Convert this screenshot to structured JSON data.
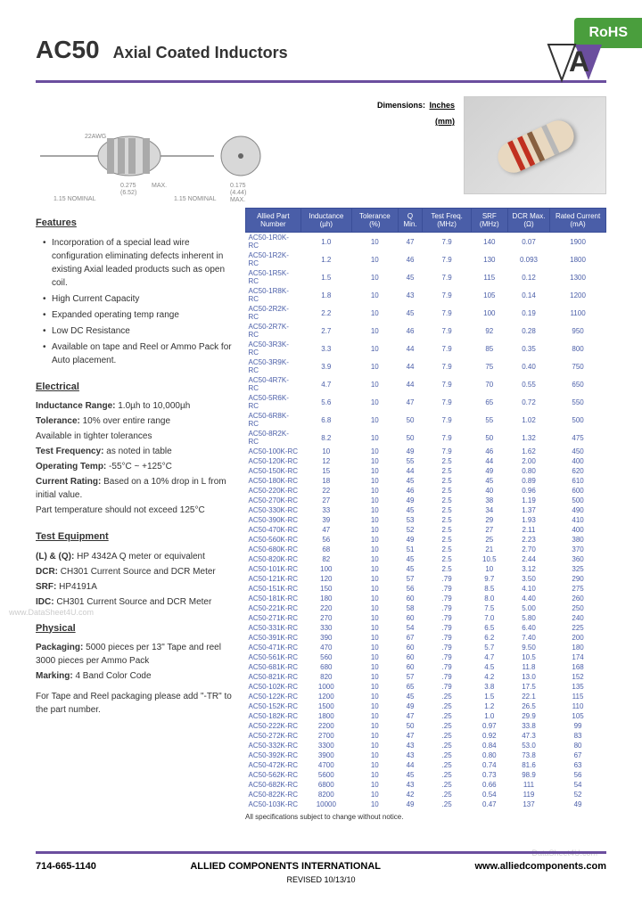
{
  "header": {
    "rohs": "RoHS",
    "part_number": "AC50",
    "description": "Axial Coated Inductors",
    "dimensions_label": "Dimensions:",
    "dimensions_units": "Inches\n(mm)"
  },
  "colors": {
    "purple_rule": "#6b4e9e",
    "table_header_bg": "#4a5ea8",
    "table_text": "#4a5ea8",
    "rohs_bg": "#4a9e3d"
  },
  "features": {
    "title": "Features",
    "items": [
      "Incorporation of a special lead wire configuration eliminating defects inherent in existing Axial leaded products such as open coil.",
      "High Current Capacity",
      "Expanded operating temp range",
      "Low DC Resistance",
      "Available on tape and Reel or Ammo Pack for Auto placement."
    ]
  },
  "electrical": {
    "title": "Electrical",
    "lines": [
      {
        "label": "Inductance Range:",
        "value": "1.0µh to 10,000µh"
      },
      {
        "label": "Tolerance:",
        "value": "10% over entire range"
      },
      {
        "label": "",
        "value": "Available in tighter tolerances"
      },
      {
        "label": "Test Frequency:",
        "value": "as noted in table"
      },
      {
        "label": "Operating Temp:",
        "value": "-55°C ~ +125°C"
      },
      {
        "label": "Current Rating:",
        "value": "Based on a 10% drop in L from initial value."
      },
      {
        "label": "",
        "value": "Part temperature should not exceed 125°C"
      }
    ]
  },
  "test_equipment": {
    "title": "Test Equipment",
    "lines": [
      {
        "label": "(L) & (Q):",
        "value": "HP 4342A Q meter or equivalent"
      },
      {
        "label": "DCR:",
        "value": "CH301 Current Source and DCR Meter"
      },
      {
        "label": "SRF:",
        "value": "HP4191A"
      },
      {
        "label": "IDC:",
        "value": "CH301 Current Source and DCR Meter"
      }
    ]
  },
  "physical": {
    "title": "Physical",
    "lines": [
      {
        "label": "Packaging:",
        "value": "5000 pieces per 13\" Tape and reel 3000 pieces per Ammo Pack"
      },
      {
        "label": "Marking:",
        "value": "4 Band Color Code"
      }
    ],
    "note": "For Tape and Reel packaging please add \"-TR\" to the part number."
  },
  "table": {
    "headers": [
      "Allied Part Number",
      "Inductance (µh)",
      "Tolerance (%)",
      "Q Min.",
      "Test Freq. (MHz)",
      "SRF (MHz)",
      "DCR Max. (Ω)",
      "Rated Current (mA)"
    ],
    "rows": [
      [
        "AC50-1R0K-RC",
        "1.0",
        "10",
        "47",
        "7.9",
        "140",
        "0.07",
        "1900"
      ],
      [
        "AC50-1R2K-RC",
        "1.2",
        "10",
        "46",
        "7.9",
        "130",
        "0.093",
        "1800"
      ],
      [
        "AC50-1R5K-RC",
        "1.5",
        "10",
        "45",
        "7.9",
        "115",
        "0.12",
        "1300"
      ],
      [
        "AC50-1R8K-RC",
        "1.8",
        "10",
        "43",
        "7.9",
        "105",
        "0.14",
        "1200"
      ],
      [
        "AC50-2R2K-RC",
        "2.2",
        "10",
        "45",
        "7.9",
        "100",
        "0.19",
        "1100"
      ],
      [
        "AC50-2R7K-RC",
        "2.7",
        "10",
        "46",
        "7.9",
        "92",
        "0.28",
        "950"
      ],
      [
        "AC50-3R3K-RC",
        "3.3",
        "10",
        "44",
        "7.9",
        "85",
        "0.35",
        "800"
      ],
      [
        "AC50-3R9K-RC",
        "3.9",
        "10",
        "44",
        "7.9",
        "75",
        "0.40",
        "750"
      ],
      [
        "AC50-4R7K-RC",
        "4.7",
        "10",
        "44",
        "7.9",
        "70",
        "0.55",
        "650"
      ],
      [
        "AC50-5R6K-RC",
        "5.6",
        "10",
        "47",
        "7.9",
        "65",
        "0.72",
        "550"
      ],
      [
        "AC50-6R8K-RC",
        "6.8",
        "10",
        "50",
        "7.9",
        "55",
        "1.02",
        "500"
      ],
      [
        "AC50-8R2K-RC",
        "8.2",
        "10",
        "50",
        "7.9",
        "50",
        "1.32",
        "475"
      ],
      [
        "AC50-100K-RC",
        "10",
        "10",
        "49",
        "7.9",
        "46",
        "1.62",
        "450"
      ],
      [
        "AC50-120K-RC",
        "12",
        "10",
        "55",
        "2.5",
        "44",
        "2.00",
        "400"
      ],
      [
        "AC50-150K-RC",
        "15",
        "10",
        "44",
        "2.5",
        "49",
        "0.80",
        "620"
      ],
      [
        "AC50-180K-RC",
        "18",
        "10",
        "45",
        "2.5",
        "45",
        "0.89",
        "610"
      ],
      [
        "AC50-220K-RC",
        "22",
        "10",
        "46",
        "2.5",
        "40",
        "0.96",
        "600"
      ],
      [
        "AC50-270K-RC",
        "27",
        "10",
        "49",
        "2.5",
        "38",
        "1.19",
        "500"
      ],
      [
        "AC50-330K-RC",
        "33",
        "10",
        "45",
        "2.5",
        "34",
        "1.37",
        "490"
      ],
      [
        "AC50-390K-RC",
        "39",
        "10",
        "53",
        "2.5",
        "29",
        "1.93",
        "410"
      ],
      [
        "AC50-470K-RC",
        "47",
        "10",
        "52",
        "2.5",
        "27",
        "2.11",
        "400"
      ],
      [
        "AC50-560K-RC",
        "56",
        "10",
        "49",
        "2.5",
        "25",
        "2.23",
        "380"
      ],
      [
        "AC50-680K-RC",
        "68",
        "10",
        "51",
        "2.5",
        "21",
        "2.70",
        "370"
      ],
      [
        "AC50-820K-RC",
        "82",
        "10",
        "45",
        "2.5",
        "10.5",
        "2.44",
        "360"
      ],
      [
        "AC50-101K-RC",
        "100",
        "10",
        "45",
        "2.5",
        "10",
        "3.12",
        "325"
      ],
      [
        "AC50-121K-RC",
        "120",
        "10",
        "57",
        ".79",
        "9.7",
        "3.50",
        "290"
      ],
      [
        "AC50-151K-RC",
        "150",
        "10",
        "56",
        ".79",
        "8.5",
        "4.10",
        "275"
      ],
      [
        "AC50-181K-RC",
        "180",
        "10",
        "60",
        ".79",
        "8.0",
        "4.40",
        "260"
      ],
      [
        "AC50-221K-RC",
        "220",
        "10",
        "58",
        ".79",
        "7.5",
        "5.00",
        "250"
      ],
      [
        "AC50-271K-RC",
        "270",
        "10",
        "60",
        ".79",
        "7.0",
        "5.80",
        "240"
      ],
      [
        "AC50-331K-RC",
        "330",
        "10",
        "54",
        ".79",
        "6.5",
        "6.40",
        "225"
      ],
      [
        "AC50-391K-RC",
        "390",
        "10",
        "67",
        ".79",
        "6.2",
        "7.40",
        "200"
      ],
      [
        "AC50-471K-RC",
        "470",
        "10",
        "60",
        ".79",
        "5.7",
        "9.50",
        "180"
      ],
      [
        "AC50-561K-RC",
        "560",
        "10",
        "60",
        ".79",
        "4.7",
        "10.5",
        "174"
      ],
      [
        "AC50-681K-RC",
        "680",
        "10",
        "60",
        ".79",
        "4.5",
        "11.8",
        "168"
      ],
      [
        "AC50-821K-RC",
        "820",
        "10",
        "57",
        ".79",
        "4.2",
        "13.0",
        "152"
      ],
      [
        "AC50-102K-RC",
        "1000",
        "10",
        "65",
        ".79",
        "3.8",
        "17.5",
        "135"
      ],
      [
        "AC50-122K-RC",
        "1200",
        "10",
        "45",
        ".25",
        "1.5",
        "22.1",
        "115"
      ],
      [
        "AC50-152K-RC",
        "1500",
        "10",
        "49",
        ".25",
        "1.2",
        "26.5",
        "110"
      ],
      [
        "AC50-182K-RC",
        "1800",
        "10",
        "47",
        ".25",
        "1.0",
        "29.9",
        "105"
      ],
      [
        "AC50-222K-RC",
        "2200",
        "10",
        "50",
        ".25",
        "0.97",
        "33.8",
        "99"
      ],
      [
        "AC50-272K-RC",
        "2700",
        "10",
        "47",
        ".25",
        "0.92",
        "47.3",
        "83"
      ],
      [
        "AC50-332K-RC",
        "3300",
        "10",
        "43",
        ".25",
        "0.84",
        "53.0",
        "80"
      ],
      [
        "AC50-392K-RC",
        "3900",
        "10",
        "43",
        ".25",
        "0.80",
        "73.8",
        "67"
      ],
      [
        "AC50-472K-RC",
        "4700",
        "10",
        "44",
        ".25",
        "0.74",
        "81.6",
        "63"
      ],
      [
        "AC50-562K-RC",
        "5600",
        "10",
        "45",
        ".25",
        "0.73",
        "98.9",
        "56"
      ],
      [
        "AC50-682K-RC",
        "6800",
        "10",
        "43",
        ".25",
        "0.66",
        "111",
        "54"
      ],
      [
        "AC50-822K-RC",
        "8200",
        "10",
        "42",
        ".25",
        "0.54",
        "119",
        "52"
      ],
      [
        "AC50-103K-RC",
        "10000",
        "10",
        "49",
        ".25",
        "0.47",
        "137",
        "49"
      ]
    ],
    "note": "All specifications subject to change without notice."
  },
  "footer": {
    "phone": "714-665-1140",
    "company": "ALLIED COMPONENTS INTERNATIONAL",
    "website": "www.alliedcomponents.com",
    "revised": "REVISED 10/13/10"
  },
  "watermarks": {
    "left": "www.DataSheet4U.com",
    "right": "DataSheet4U.com"
  }
}
